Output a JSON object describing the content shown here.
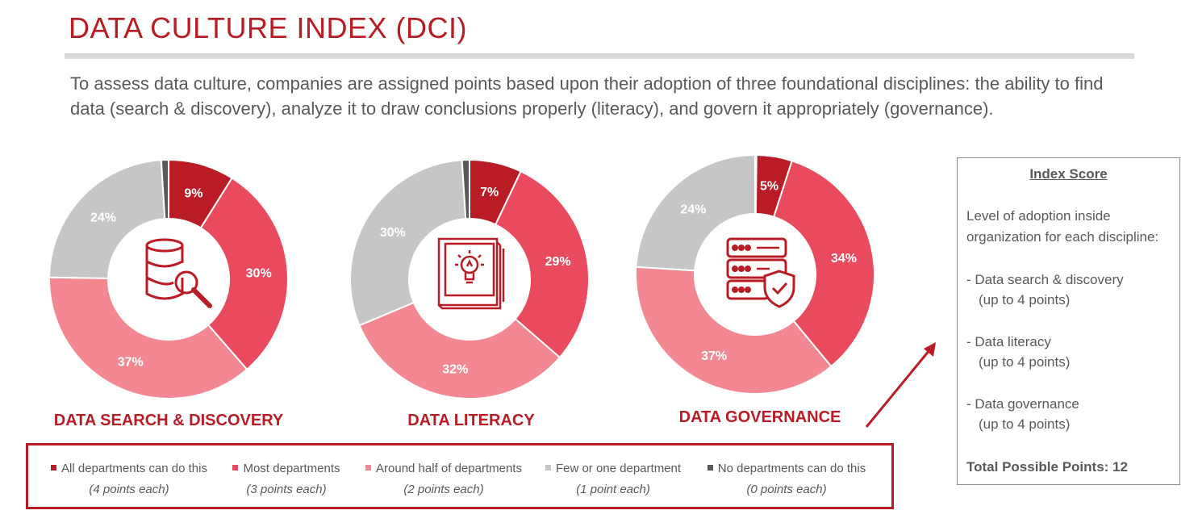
{
  "title": "DATA CULTURE INDEX (DCI)",
  "subtitle": "To assess data culture, companies are assigned points based upon their adoption of three foundational disciplines:  the ability to find data (search & discovery), analyze it to draw conclusions properly (literacy), and govern it appropriately (governance).",
  "colors": {
    "all": "#b91c24",
    "most": "#ea4a5e",
    "half": "#f38893",
    "few": "#c6c6c6",
    "none": "#595959",
    "accent": "#b91c24"
  },
  "chart_data": [
    {
      "type": "pie",
      "title": "DATA SEARCH & DISCOVERY",
      "icon": "database-search-icon",
      "categories": [
        "All departments can do this",
        "Most departments",
        "Around half of departments",
        "Few or one department",
        "No departments can do this"
      ],
      "values": [
        9,
        30,
        37,
        24,
        1
      ],
      "labels": [
        "9%",
        "30%",
        "37%",
        "24%",
        ""
      ]
    },
    {
      "type": "pie",
      "title": "DATA LITERACY",
      "icon": "book-lightbulb-icon",
      "categories": [
        "All departments can do this",
        "Most departments",
        "Around half of departments",
        "Few or one department",
        "No departments can do this"
      ],
      "values": [
        7,
        29,
        32,
        30,
        1
      ],
      "labels": [
        "7%",
        "29%",
        "32%",
        "30%",
        ""
      ]
    },
    {
      "type": "pie",
      "title": "DATA GOVERNANCE",
      "icon": "server-shield-icon",
      "categories": [
        "All departments can do this",
        "Most departments",
        "Around half of departments",
        "Few or one department",
        "No departments can do this"
      ],
      "values": [
        5,
        34,
        37,
        24,
        0
      ],
      "labels": [
        "5%",
        "34%",
        "37%",
        "24%",
        ""
      ]
    }
  ],
  "legend": [
    {
      "label": "All departments can do this",
      "points": "(4 points each)",
      "color_key": "all"
    },
    {
      "label": "Most departments",
      "points": "(3 points each)",
      "color_key": "most"
    },
    {
      "label": "Around half of departments",
      "points": "(2 points each)",
      "color_key": "half"
    },
    {
      "label": "Few or one department",
      "points": "(1 point each)",
      "color_key": "few"
    },
    {
      "label": "No departments can do this",
      "points": "(0 points each)",
      "color_key": "none"
    }
  ],
  "index_box": {
    "heading": "Index Score",
    "lines": [
      "Level of adoption inside",
      "organization for each discipline:",
      "- Data search & discovery",
      "(up to 4 points)",
      "- Data literacy",
      "(up to 4 points)",
      "- Data governance",
      "(up to 4 points)"
    ],
    "total_label": "Total Possible Points: 12"
  }
}
